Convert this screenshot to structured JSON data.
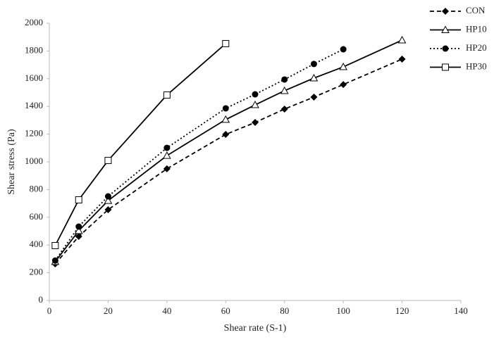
{
  "chart_data": {
    "type": "line",
    "x_label": "Shear rate (S-1)",
    "y_label": "Shear stress (Pa)",
    "x": [
      2,
      10,
      20,
      40,
      60,
      70,
      80,
      90,
      100,
      120
    ],
    "series": [
      {
        "name": "CON",
        "color": "#000000",
        "dash": "dashed",
        "marker": "diamond",
        "values": [
          264,
          462,
          655,
          950,
          1198,
          1284,
          1381,
          1467,
          1558,
          1741
        ]
      },
      {
        "name": "HP10",
        "color": "#000000",
        "dash": "solid",
        "marker": "triangle",
        "values": [
          280,
          503,
          720,
          1045,
          1305,
          1411,
          1513,
          1604,
          1685,
          1878
        ]
      },
      {
        "name": "HP20",
        "color": "#000000",
        "dash": "dotted",
        "marker": "circle",
        "values": [
          288,
          533,
          751,
          1101,
          1386,
          1487,
          1594,
          1706,
          1812,
          null
        ]
      },
      {
        "name": "HP30",
        "color": "#000000",
        "dash": "solid",
        "marker": "square",
        "values": [
          396,
          726,
          1010,
          1482,
          1853,
          null,
          null,
          null,
          null,
          null
        ]
      }
    ],
    "xlim": [
      0,
      140
    ],
    "xticks": [
      0,
      20,
      40,
      60,
      80,
      100,
      120,
      140
    ],
    "ylim": [
      0,
      2000
    ],
    "yticks": [
      0,
      200,
      400,
      600,
      800,
      1000,
      1200,
      1400,
      1600,
      1800,
      2000
    ],
    "grid": false,
    "legend": "top-right"
  }
}
